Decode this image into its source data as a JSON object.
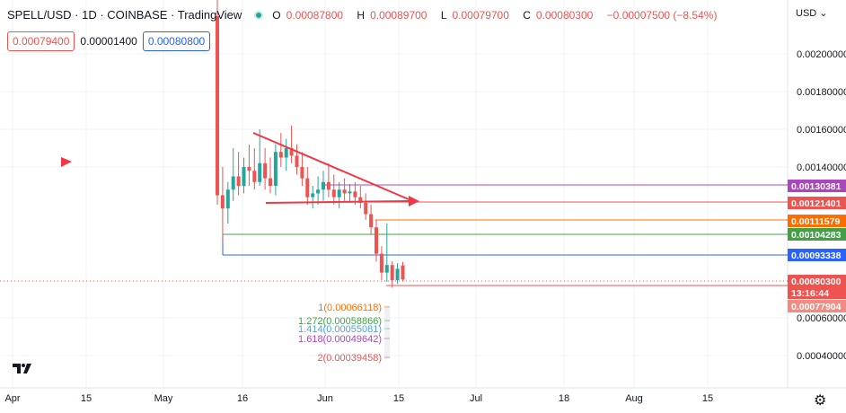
{
  "header": {
    "title": "SPELL/USD · 1D · COINBASE · TradingView",
    "open_label": "O",
    "open": "0.00087800",
    "high_label": "H",
    "high": "0.00089700",
    "low_label": "L",
    "low": "0.00079700",
    "close_label": "C",
    "close": "0.00080300",
    "change": "−0.00007500 (−8.54%)"
  },
  "quote": {
    "bid": "0.00079400",
    "spread": "0.00001400",
    "ask": "0.00080800"
  },
  "currency": "USD",
  "y_ticks": [
    "0.00200000",
    "0.00180000",
    "0.00160000",
    "0.00140000",
    "0.00060000",
    "0.00040000"
  ],
  "x_ticks": [
    "Apr",
    "15",
    "May",
    "16",
    "Jun",
    "15",
    "Jul",
    "18",
    "Aug",
    "15"
  ],
  "price_tags": [
    {
      "label": "0.00130381",
      "color": "#ab47bc"
    },
    {
      "label": "0.00121401",
      "color": "#ef5350"
    },
    {
      "label": "0.00111579",
      "color": "#ff6d00"
    },
    {
      "label": "0.00104283",
      "color": "#43a047"
    },
    {
      "label": "0.00093338",
      "color": "#2962ff"
    },
    {
      "label": "0.00080300",
      "color": "#ef5350"
    },
    {
      "label": "13:16:44",
      "color": "#ef5350"
    },
    {
      "label": "0.00077904",
      "color": "#f28b82"
    }
  ],
  "fib_labels": [
    {
      "label": "1(0.00066118)",
      "color": "#ff6d00"
    },
    {
      "label": "1.272(0.00058866)",
      "color": "#43a047"
    },
    {
      "label": "1.414(0.00055081)",
      "color": "#42a5f5"
    },
    {
      "label": "1.618(0.00049642)",
      "color": "#ab47bc"
    },
    {
      "label": "2(0.00039458)",
      "color": "#ef5350"
    }
  ],
  "chart_data": {
    "type": "candlestick",
    "title": "SPELL/USD · 1D · COINBASE · TradingView",
    "ohlc": [
      [
        0.0022,
        0.0023,
        0.0012,
        0.00125
      ],
      [
        0.00125,
        0.0014,
        0.001,
        0.00118
      ],
      [
        0.00118,
        0.00132,
        0.0011,
        0.00128
      ],
      [
        0.00128,
        0.0015,
        0.00122,
        0.00135
      ],
      [
        0.00135,
        0.00148,
        0.00125,
        0.0013
      ],
      [
        0.0013,
        0.00145,
        0.00126,
        0.0014
      ],
      [
        0.0014,
        0.00152,
        0.0013,
        0.00138
      ],
      [
        0.00138,
        0.0015,
        0.00128,
        0.00132
      ],
      [
        0.00132,
        0.0016,
        0.0013,
        0.00142
      ],
      [
        0.00142,
        0.0015,
        0.00128,
        0.00134
      ],
      [
        0.00134,
        0.00145,
        0.00126,
        0.0013
      ],
      [
        0.0013,
        0.00152,
        0.00125,
        0.00148
      ],
      [
        0.00148,
        0.00158,
        0.0014,
        0.00145
      ],
      [
        0.00145,
        0.00155,
        0.00138,
        0.0015
      ],
      [
        0.0015,
        0.00162,
        0.00142,
        0.00146
      ],
      [
        0.00146,
        0.00152,
        0.00136,
        0.0014
      ],
      [
        0.0014,
        0.00148,
        0.0013,
        0.00134
      ],
      [
        0.00134,
        0.0014,
        0.0012,
        0.00124
      ],
      [
        0.00124,
        0.0013,
        0.00118,
        0.00126
      ],
      [
        0.00126,
        0.00135,
        0.0012,
        0.00128
      ],
      [
        0.00128,
        0.00138,
        0.00122,
        0.00132
      ],
      [
        0.00132,
        0.00142,
        0.00124,
        0.00128
      ],
      [
        0.00128,
        0.00136,
        0.0012,
        0.00124
      ],
      [
        0.00124,
        0.00132,
        0.00118,
        0.00128
      ],
      [
        0.00128,
        0.00134,
        0.00122,
        0.00126
      ],
      [
        0.00126,
        0.00131,
        0.00121,
        0.00127
      ],
      [
        0.00127,
        0.00132,
        0.0012,
        0.00124
      ],
      [
        0.00124,
        0.0013,
        0.00118,
        0.00121
      ],
      [
        0.00121,
        0.00126,
        0.00112,
        0.00115
      ],
      [
        0.00115,
        0.0012,
        0.00104,
        0.00108
      ],
      [
        0.00108,
        0.00112,
        0.0009,
        0.00094
      ],
      [
        0.00094,
        0.00098,
        0.0008,
        0.00084
      ],
      [
        0.00084,
        0.0011,
        0.00079,
        0.00088
      ],
      [
        0.00088,
        0.0009,
        0.00076,
        0.0008
      ],
      [
        0.0008,
        0.00089,
        0.00078,
        0.00086
      ],
      [
        0.000878,
        0.000897,
        0.000797,
        0.000803
      ]
    ],
    "y_range": [
      0.0003,
      0.0022
    ]
  }
}
